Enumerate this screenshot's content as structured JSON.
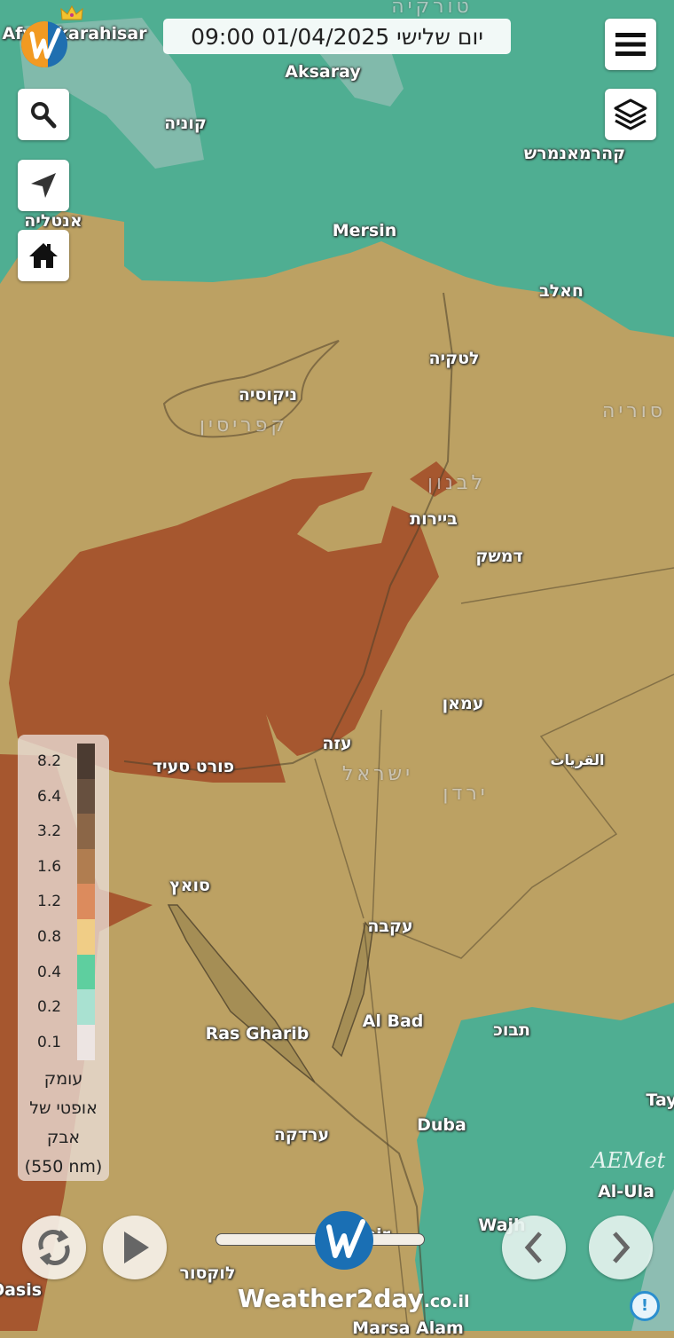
{
  "header": {
    "datetime": "יום שלישי 01/04/2025 09:00"
  },
  "colors": {
    "sea_low": "#4fae92",
    "land_mid": "#bca163",
    "high_dust": "#a6572f",
    "haze": "#8dbdb2"
  },
  "buttons": {
    "menu": "menu-icon",
    "layers": "layers-icon",
    "search": "search-icon",
    "locate": "navigation-arrow-icon",
    "home": "home-icon",
    "refresh": "refresh-icon",
    "play": "play-icon",
    "prev": "chevron-left-icon",
    "next": "chevron-right-icon",
    "info": "exclamation-icon"
  },
  "timeline": {
    "progress": 0.62
  },
  "labels": {
    "turkey": "טורקיה",
    "afyon": "Afyonkarahisar",
    "aksaray": "Aksaray",
    "konya": "קוניה",
    "kahramanmaras": "קהרמאנמרש",
    "antalya": "אנטליה",
    "mersin": "Mersin",
    "aleppo": "חאלב",
    "latakia": "לטקיה",
    "nicosia": "ניקוסיה",
    "cyprus": "קפריסין",
    "syria": "סוריה",
    "lebanon": "לבנון",
    "beirut": "ביירות",
    "damascus": "דמשק",
    "amman": "עמאן",
    "gaza": "עזה",
    "israel": "ישראל",
    "jordan": "ירדן",
    "qurayyat": "القريات",
    "port_said": "פורט סעיד",
    "suez": "סואץ",
    "aqaba": "עקבה",
    "al_bad": "Al Bad",
    "tabuk": "תבוכ",
    "ras_gharib": "Ras Gharib",
    "hurghada": "ערדקה",
    "duba": "Duba",
    "tay": "Tay",
    "al_ula": "Al-Ula",
    "wajh": "Wajh",
    "luxor": "לוקסור",
    "oasis": "Oasis",
    "marsa_alam": "Marsa Alam",
    "quseir": "seir"
  },
  "legend": {
    "title_lines": [
      "עומק",
      "אופטי של",
      "אבק",
      "(550 nm)"
    ],
    "items": [
      {
        "value": "8.2",
        "color": "#4b3b31"
      },
      {
        "value": "6.4",
        "color": "#67503f"
      },
      {
        "value": "3.2",
        "color": "#8b6647"
      },
      {
        "value": "1.6",
        "color": "#b07d50"
      },
      {
        "value": "1.2",
        "color": "#dc8b5d"
      },
      {
        "value": "0.8",
        "color": "#f0cd86"
      },
      {
        "value": "0.4",
        "color": "#5ecf9f"
      },
      {
        "value": "0.2",
        "color": "#a9e1d1"
      },
      {
        "value": "0.1",
        "color": "#ede5e3"
      }
    ]
  },
  "branding": {
    "name": "Weather2day",
    "tld": ".co.il",
    "watermark": "AEMet"
  }
}
